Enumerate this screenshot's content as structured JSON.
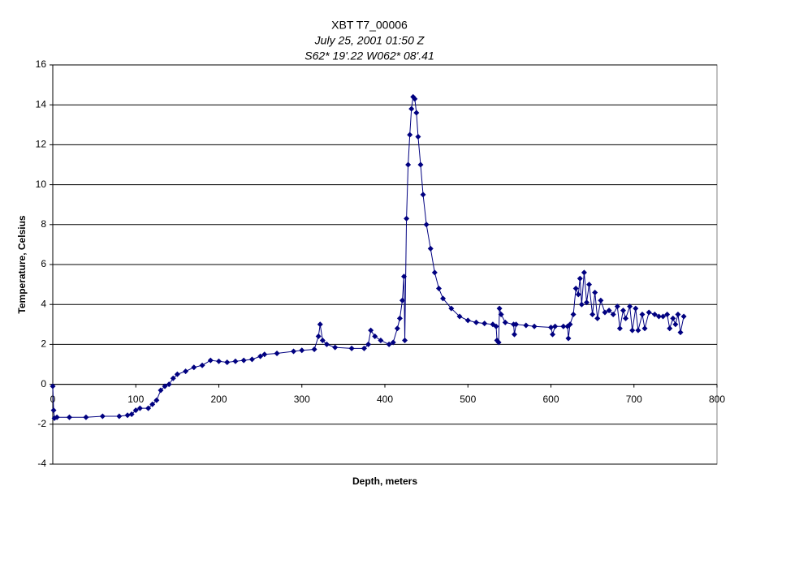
{
  "chart_data": {
    "type": "line",
    "title": "XBT T7_00006",
    "subtitle": [
      "July 25, 2001  01:50 Z",
      "S62* 19'.22  W062* 08'.41"
    ],
    "x_label": "Depth, meters",
    "y_label": "Temperature, Celsius",
    "x": [
      0,
      1,
      2,
      5,
      20,
      40,
      60,
      80,
      90,
      95,
      100,
      105,
      115,
      120,
      125,
      130,
      135,
      140,
      145,
      150,
      160,
      170,
      180,
      190,
      200,
      210,
      220,
      230,
      240,
      250,
      255,
      270,
      290,
      300,
      315,
      320,
      322,
      325,
      330,
      340,
      360,
      375,
      380,
      383,
      388,
      395,
      405,
      410,
      415,
      418,
      421,
      423,
      424,
      426,
      428,
      430,
      432,
      434,
      436,
      438,
      440,
      443,
      446,
      450,
      455,
      460,
      465,
      470,
      480,
      490,
      500,
      510,
      520,
      530,
      534,
      535,
      537,
      538,
      540,
      545,
      555,
      556,
      558,
      570,
      580,
      600,
      602,
      605,
      615,
      620,
      621,
      623,
      627,
      630,
      633,
      635,
      637,
      640,
      643,
      646,
      650,
      653,
      656,
      660,
      665,
      670,
      675,
      680,
      683,
      687,
      690,
      695,
      698,
      702,
      705,
      710,
      713,
      718,
      725,
      730,
      735,
      740,
      743,
      747,
      750,
      753,
      756,
      760
    ],
    "series": [
      {
        "name": "Temperature",
        "color": "#000080",
        "values": [
          -0.1,
          -1.3,
          -1.7,
          -1.65,
          -1.65,
          -1.65,
          -1.6,
          -1.6,
          -1.55,
          -1.5,
          -1.3,
          -1.2,
          -1.2,
          -1.0,
          -0.8,
          -0.3,
          -0.1,
          0.0,
          0.3,
          0.5,
          0.65,
          0.85,
          0.95,
          1.2,
          1.15,
          1.1,
          1.15,
          1.2,
          1.25,
          1.4,
          1.5,
          1.55,
          1.65,
          1.7,
          1.75,
          2.4,
          3.0,
          2.2,
          2.0,
          1.85,
          1.8,
          1.8,
          2.0,
          2.7,
          2.4,
          2.2,
          2.0,
          2.1,
          2.8,
          3.3,
          4.2,
          5.4,
          2.2,
          8.3,
          11.0,
          12.5,
          13.8,
          14.4,
          14.3,
          13.6,
          12.4,
          11.0,
          9.5,
          8.0,
          6.8,
          5.6,
          4.8,
          4.3,
          3.8,
          3.4,
          3.2,
          3.1,
          3.05,
          3.0,
          2.9,
          2.2,
          2.1,
          3.8,
          3.5,
          3.1,
          3.0,
          2.5,
          3.0,
          2.95,
          2.9,
          2.85,
          2.5,
          2.9,
          2.9,
          2.9,
          2.3,
          3.0,
          3.5,
          4.8,
          4.5,
          5.3,
          4.0,
          5.6,
          4.1,
          5.0,
          3.5,
          4.6,
          3.3,
          4.2,
          3.6,
          3.7,
          3.5,
          3.9,
          2.8,
          3.7,
          3.3,
          3.9,
          2.7,
          3.8,
          2.7,
          3.5,
          2.8,
          3.6,
          3.5,
          3.4,
          3.4,
          3.5,
          2.8,
          3.3,
          3.0,
          3.5,
          2.6,
          3.4
        ]
      }
    ],
    "xlim": [
      0,
      800
    ],
    "xticks": [
      0,
      100,
      200,
      300,
      400,
      500,
      600,
      700,
      800
    ],
    "ylim": [
      -4,
      16
    ],
    "yticks": [
      -4,
      -2,
      0,
      2,
      4,
      6,
      8,
      10,
      12,
      14,
      16
    ],
    "grid": true
  }
}
